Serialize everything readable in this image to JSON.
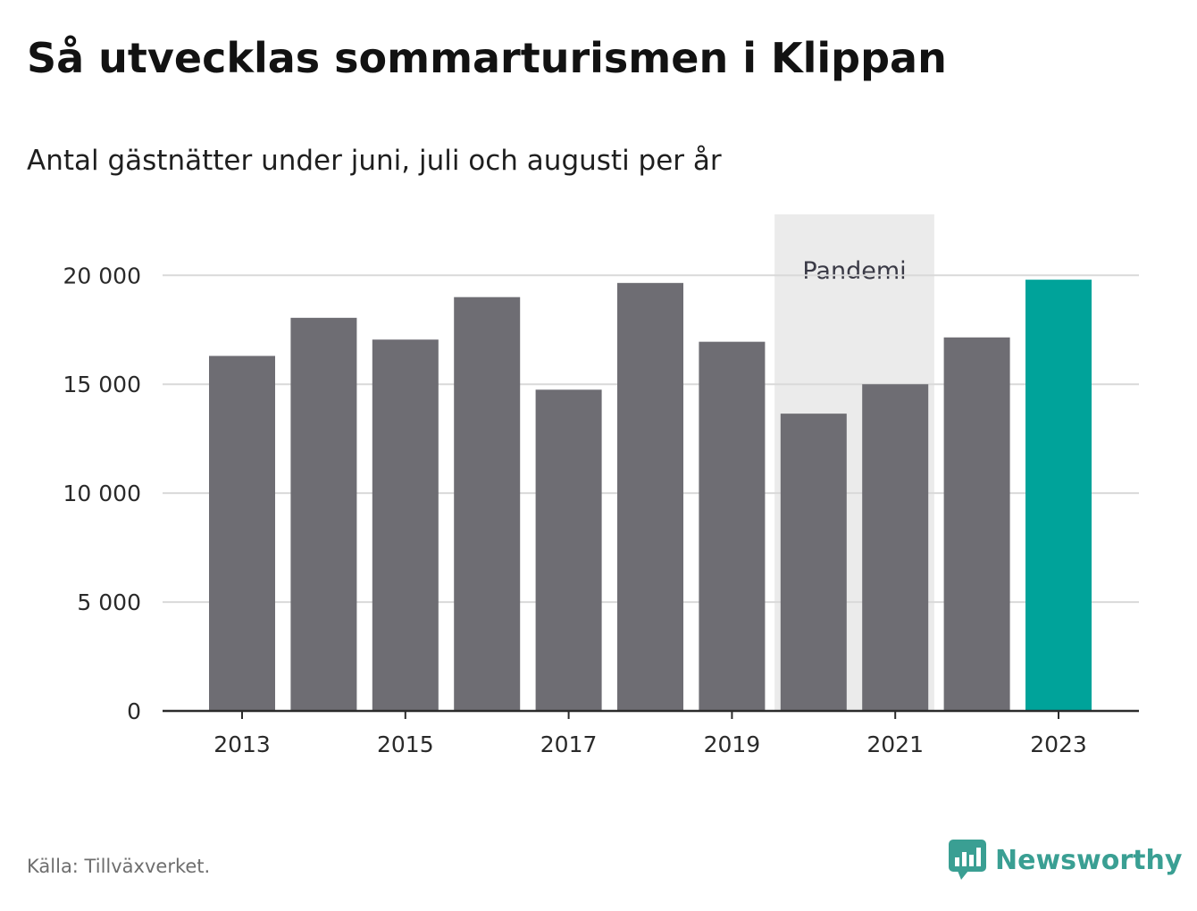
{
  "title": "Så utvecklas sommarturismen i Klippan",
  "subtitle": "Antal gästnätter under juni, juli och augusti per år",
  "source": "Källa: Tillväxverket.",
  "brand": {
    "name": "Newsworthy",
    "icon": "newsworthy-logo-icon",
    "color": "#3a9f93"
  },
  "chart_data": {
    "type": "bar",
    "categories": [
      "2013",
      "2014",
      "2015",
      "2016",
      "2017",
      "2018",
      "2019",
      "2020",
      "2021",
      "2022",
      "2023"
    ],
    "values": [
      16300,
      18050,
      17050,
      19000,
      14750,
      19650,
      16950,
      13650,
      15000,
      17150,
      19800
    ],
    "highlight_category": "2023",
    "bar_color": "#6e6d73",
    "highlight_color": "#00a39a",
    "x_tick_labels": [
      "2013",
      "2015",
      "2017",
      "2019",
      "2021",
      "2023"
    ],
    "y_ticks": [
      {
        "value": 0,
        "label": "0"
      },
      {
        "value": 5000,
        "label": "5 000"
      },
      {
        "value": 10000,
        "label": "10 000"
      },
      {
        "value": 15000,
        "label": "15 000"
      },
      {
        "value": 20000,
        "label": "20 000"
      }
    ],
    "ylim": [
      0,
      22800
    ],
    "grid": true,
    "annotation": {
      "label": "Pandemi",
      "from_category": "2020",
      "to_category": "2021",
      "color": "#ebebeb"
    }
  }
}
